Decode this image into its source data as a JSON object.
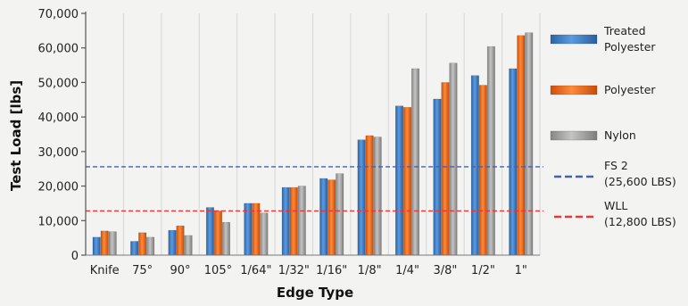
{
  "chart_data": {
    "type": "bar",
    "xlabel": "Edge Type",
    "ylabel": "Test Load [lbs]",
    "ylim": [
      0,
      70000
    ],
    "yticks": [
      0,
      10000,
      20000,
      30000,
      40000,
      50000,
      60000,
      70000
    ],
    "ytick_labels": [
      "0",
      "10,000",
      "20,000",
      "30,000",
      "40,000",
      "50,000",
      "60,000",
      "70,000"
    ],
    "categories": [
      "Knife",
      "75°",
      "90°",
      "105°",
      "1/64\"",
      "1/32\"",
      "1/16\"",
      "1/8\"",
      "1/4\"",
      "3/8\"",
      "1/2\"",
      "1\""
    ],
    "series": [
      {
        "name": "Treated Polyester",
        "legend_lines": [
          "Treated",
          "Polyester"
        ],
        "color": "#3b7fc8",
        "values": [
          5200,
          4000,
          7200,
          13800,
          15000,
          19600,
          22200,
          33400,
          43200,
          45200,
          52000,
          54000
        ]
      },
      {
        "name": "Polyester",
        "legend_lines": [
          "Polyester"
        ],
        "color": "#f06a12",
        "values": [
          7000,
          6500,
          8500,
          12800,
          15000,
          19600,
          21800,
          34600,
          42800,
          50000,
          49200,
          63600
        ]
      },
      {
        "name": "Nylon",
        "legend_lines": [
          "Nylon"
        ],
        "color": "#9e9e9e",
        "values": [
          6800,
          5200,
          5700,
          9500,
          12200,
          20000,
          23600,
          34200,
          54000,
          55600,
          60400,
          64400
        ]
      }
    ],
    "reference_lines": [
      {
        "name": "FS 2",
        "legend_lines": [
          "FS 2",
          "(25,600 LBS)"
        ],
        "value": 25600,
        "color": "#4a5fa8",
        "style": "dashed"
      },
      {
        "name": "WLL",
        "legend_lines": [
          "WLL",
          "(12,800 LBS)"
        ],
        "value": 12800,
        "color": "#e83535",
        "style": "dashed"
      }
    ],
    "grid": "vertical",
    "legend_position": "right"
  }
}
